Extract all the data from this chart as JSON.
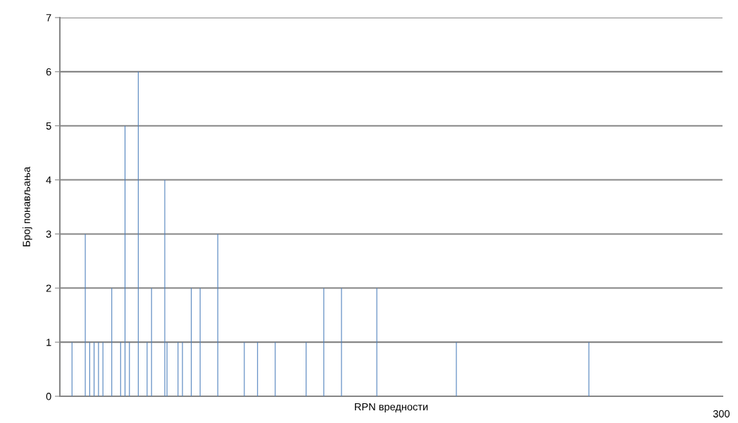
{
  "chart_data": {
    "type": "bar",
    "xlabel": "RPN вредности",
    "ylabel": "Број понављања",
    "categories": [
      null,
      null,
      null,
      null,
      null,
      null,
      null,
      null,
      null,
      null,
      null,
      null,
      null,
      null,
      null,
      null,
      null,
      null,
      null,
      null,
      null,
      null,
      null,
      null,
      null,
      null,
      null,
      null,
      null,
      null,
      null,
      null,
      null,
      null,
      null,
      null,
      null,
      null,
      null,
      null,
      null,
      null,
      null,
      null,
      null,
      null,
      null,
      null,
      null,
      null,
      null,
      null,
      null,
      null,
      null,
      null,
      null,
      null,
      null,
      null,
      null,
      null,
      null,
      null,
      null,
      null,
      null,
      null,
      null,
      null,
      null,
      null,
      null,
      null,
      null,
      null,
      null,
      null,
      null,
      null,
      null,
      null,
      null,
      null,
      null,
      null,
      null,
      null,
      null,
      null,
      null,
      null,
      null,
      null,
      null,
      null,
      null,
      null,
      null,
      null,
      null,
      null,
      null,
      null,
      null,
      null,
      null,
      null,
      null,
      null,
      null,
      null,
      null,
      null,
      null,
      null,
      null,
      null,
      null,
      null,
      null,
      null,
      null,
      null,
      null,
      null,
      null,
      null,
      null,
      null,
      null,
      null,
      null,
      null,
      null,
      null,
      null,
      null,
      null,
      null,
      null,
      null,
      null,
      null,
      null,
      null,
      null,
      null,
      null,
      null,
      null,
      null,
      null,
      null,
      null,
      null,
      null,
      null,
      null,
      null,
      null,
      null,
      null,
      null,
      null,
      null,
      null,
      null,
      null,
      null,
      null,
      null,
      null,
      null,
      null,
      null,
      null,
      null,
      null,
      null,
      null,
      null,
      null,
      null,
      null,
      null,
      null,
      null,
      null,
      null,
      null,
      null,
      null,
      null,
      null,
      null,
      null,
      null,
      null,
      null,
      null,
      null,
      null,
      null,
      null,
      null,
      null,
      null,
      null,
      null,
      null,
      null,
      null,
      null,
      null,
      null,
      null,
      null,
      null,
      null,
      null,
      null,
      null,
      null,
      null,
      null,
      null,
      null,
      null,
      null,
      null,
      null,
      null,
      null,
      null,
      null,
      null,
      null,
      null,
      null,
      null,
      null,
      null,
      null,
      null,
      null,
      null,
      null,
      null,
      null,
      null,
      null,
      null,
      null,
      null,
      null,
      null,
      null,
      null,
      null,
      null,
      null,
      null,
      null,
      null,
      null,
      null,
      null,
      null,
      null,
      null,
      null,
      null,
      null,
      null,
      null,
      null,
      null,
      null,
      null,
      null,
      null,
      null,
      null,
      null,
      null,
      null,
      null,
      null,
      null,
      null,
      null,
      null,
      null,
      null,
      null,
      null,
      null,
      null,
      "300"
    ],
    "values": [
      null,
      null,
      null,
      null,
      null,
      1,
      null,
      null,
      null,
      null,
      null,
      3,
      null,
      1,
      null,
      1,
      null,
      1,
      null,
      1,
      null,
      null,
      null,
      2,
      null,
      null,
      null,
      1,
      null,
      5,
      null,
      1,
      null,
      null,
      null,
      6,
      null,
      null,
      null,
      1,
      null,
      2,
      null,
      null,
      null,
      null,
      null,
      4,
      1,
      null,
      null,
      null,
      null,
      1,
      null,
      1,
      null,
      null,
      null,
      2,
      null,
      null,
      null,
      2,
      null,
      null,
      null,
      null,
      null,
      null,
      null,
      3,
      null,
      null,
      null,
      null,
      null,
      null,
      null,
      null,
      null,
      null,
      null,
      1,
      null,
      null,
      null,
      null,
      null,
      1,
      null,
      null,
      null,
      null,
      null,
      null,
      null,
      1,
      null,
      null,
      null,
      null,
      null,
      null,
      null,
      null,
      null,
      null,
      null,
      null,
      null,
      1,
      null,
      null,
      null,
      null,
      null,
      null,
      null,
      2,
      null,
      null,
      null,
      null,
      null,
      null,
      null,
      2,
      null,
      null,
      null,
      null,
      null,
      null,
      null,
      null,
      null,
      null,
      null,
      null,
      null,
      null,
      null,
      2,
      null,
      null,
      null,
      null,
      null,
      null,
      null,
      null,
      null,
      null,
      null,
      null,
      null,
      null,
      null,
      null,
      null,
      null,
      null,
      null,
      null,
      null,
      null,
      null,
      null,
      null,
      null,
      null,
      null,
      null,
      null,
      null,
      null,
      null,
      null,
      1,
      null,
      null,
      null,
      null,
      null,
      null,
      null,
      null,
      null,
      null,
      null,
      null,
      null,
      null,
      null,
      null,
      null,
      null,
      null,
      null,
      null,
      null,
      null,
      null,
      null,
      null,
      null,
      null,
      null,
      null,
      null,
      null,
      null,
      null,
      null,
      null,
      null,
      null,
      null,
      null,
      null,
      null,
      null,
      null,
      null,
      null,
      null,
      null,
      null,
      null,
      null,
      null,
      null,
      null,
      null,
      null,
      null,
      null,
      null,
      1,
      null,
      null,
      null,
      null,
      null,
      null,
      null,
      null,
      null,
      null,
      null,
      null,
      null,
      null,
      null,
      null,
      null,
      null,
      null,
      null,
      null,
      null,
      null,
      null,
      null,
      null,
      null,
      null,
      null,
      null,
      null,
      null,
      null,
      null,
      null,
      null,
      null,
      null,
      null,
      null,
      null,
      null,
      null,
      null,
      null,
      null,
      null,
      null,
      null,
      null,
      null,
      null,
      null,
      null,
      null,
      null,
      null,
      null,
      null,
      null
    ],
    "color": "#4f81bd",
    "ylim": [
      0,
      7
    ],
    "yticks": [
      0,
      1,
      2,
      3,
      4,
      5,
      6,
      7
    ],
    "grid": "y",
    "legend": false
  }
}
